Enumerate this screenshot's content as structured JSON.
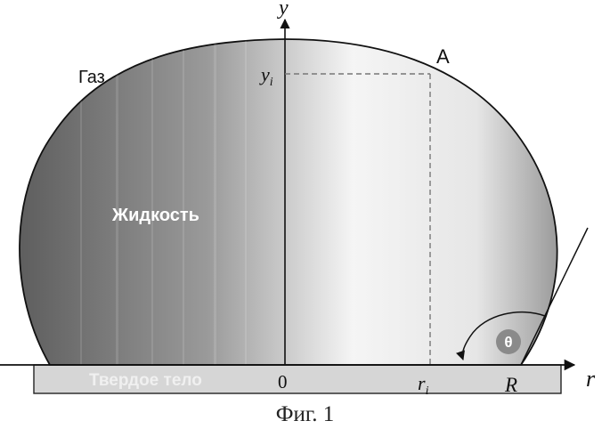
{
  "labels": {
    "gas": "Газ",
    "liquid": "Жидкость",
    "solid": "Твердое тело",
    "point_a": "A",
    "y_axis": "y",
    "r_axis": "r",
    "y_i": "y",
    "y_i_sub": "i",
    "origin": "0",
    "r_i": "r",
    "r_i_sub": "i",
    "radius": "R",
    "theta": "θ"
  },
  "caption": "Фиг. 1",
  "colors": {
    "droplet_dark": "#6f6f6f",
    "droplet_light": "#f4f4f4",
    "outline": "#111111",
    "substrate": "#d6d6d6",
    "theta_badge": "#8a8a8a",
    "dashed_line": "#777777"
  }
}
